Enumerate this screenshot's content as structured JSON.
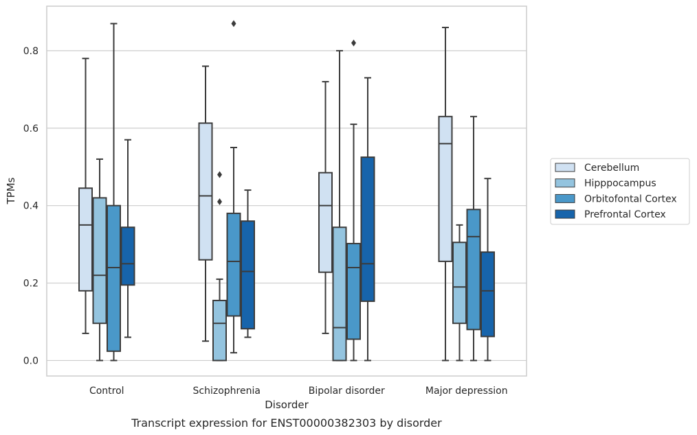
{
  "chart_data": {
    "type": "boxplot",
    "title": "",
    "caption": "Transcript expression for ENST00000382303 by disorder",
    "xlabel": "Disorder",
    "ylabel": "TPMs",
    "ylim": [
      -0.04,
      0.915
    ],
    "yticks": [
      "0.0",
      "0.2",
      "0.4",
      "0.6",
      "0.8"
    ],
    "grid": "horizontal",
    "legend_placement": "right",
    "categories": [
      "Control",
      "Schizophrenia",
      "Bipolar disorder",
      "Major depression"
    ],
    "series": [
      {
        "name": "Cerebellum",
        "color": "#d0e1f2",
        "boxes": [
          {
            "whislo": 0.07,
            "q1": 0.18,
            "med": 0.35,
            "q3": 0.445,
            "whishi": 0.78,
            "fliers": []
          },
          {
            "whislo": 0.05,
            "q1": 0.26,
            "med": 0.425,
            "q3": 0.613,
            "whishi": 0.76,
            "fliers": []
          },
          {
            "whislo": 0.07,
            "q1": 0.228,
            "med": 0.4,
            "q3": 0.485,
            "whishi": 0.72,
            "fliers": []
          },
          {
            "whislo": 0.0,
            "q1": 0.256,
            "med": 0.56,
            "q3": 0.63,
            "whishi": 0.86,
            "fliers": []
          }
        ]
      },
      {
        "name": "Hipppocampus",
        "color": "#94c4df",
        "boxes": [
          {
            "whislo": 0.0,
            "q1": 0.096,
            "med": 0.22,
            "q3": 0.42,
            "whishi": 0.52,
            "fliers": []
          },
          {
            "whislo": 0.0,
            "q1": 0.0,
            "med": 0.096,
            "q3": 0.155,
            "whishi": 0.21,
            "fliers": [
              0.41,
              0.48
            ]
          },
          {
            "whislo": 0.0,
            "q1": 0.0,
            "med": 0.085,
            "q3": 0.344,
            "whishi": 0.8,
            "fliers": []
          },
          {
            "whislo": 0.0,
            "q1": 0.096,
            "med": 0.19,
            "q3": 0.305,
            "whishi": 0.35,
            "fliers": []
          }
        ]
      },
      {
        "name": "Orbitofontal Cortex",
        "color": "#4a98c9",
        "boxes": [
          {
            "whislo": 0.0,
            "q1": 0.024,
            "med": 0.24,
            "q3": 0.4,
            "whishi": 0.87,
            "fliers": []
          },
          {
            "whislo": 0.02,
            "q1": 0.115,
            "med": 0.256,
            "q3": 0.38,
            "whishi": 0.55,
            "fliers": [
              0.87
            ]
          },
          {
            "whislo": 0.0,
            "q1": 0.055,
            "med": 0.24,
            "q3": 0.302,
            "whishi": 0.61,
            "fliers": [
              0.82
            ]
          },
          {
            "whislo": 0.0,
            "q1": 0.08,
            "med": 0.32,
            "q3": 0.39,
            "whishi": 0.63,
            "fliers": []
          }
        ]
      },
      {
        "name": "Prefrontal Cortex",
        "color": "#1764ab",
        "boxes": [
          {
            "whislo": 0.06,
            "q1": 0.195,
            "med": 0.25,
            "q3": 0.344,
            "whishi": 0.57,
            "fliers": []
          },
          {
            "whislo": 0.06,
            "q1": 0.082,
            "med": 0.23,
            "q3": 0.36,
            "whishi": 0.44,
            "fliers": []
          },
          {
            "whislo": 0.0,
            "q1": 0.153,
            "med": 0.25,
            "q3": 0.525,
            "whishi": 0.73,
            "fliers": []
          },
          {
            "whislo": 0.0,
            "q1": 0.062,
            "med": 0.18,
            "q3": 0.28,
            "whishi": 0.47,
            "fliers": []
          }
        ]
      }
    ]
  }
}
